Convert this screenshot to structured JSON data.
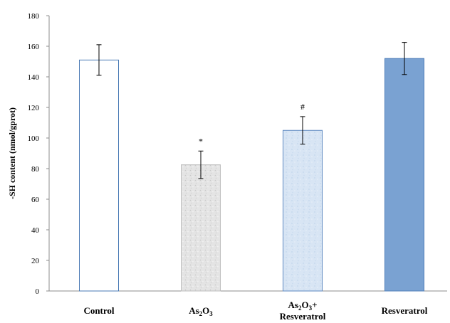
{
  "chart_data": {
    "type": "bar",
    "title": "",
    "xlabel": "",
    "ylabel": "-SH content (nmol/gprot)",
    "ylim": [
      0,
      180
    ],
    "yticks": [
      0,
      20,
      40,
      60,
      80,
      100,
      120,
      140,
      160,
      180
    ],
    "grid": false,
    "legend": "none",
    "categories": [
      {
        "label": "Control",
        "label_parts": [
          {
            "text": "Control"
          }
        ]
      },
      {
        "label": "As2O3",
        "label_parts": [
          {
            "text": "As"
          },
          {
            "text": "2",
            "sub": true
          },
          {
            "text": "O"
          },
          {
            "text": "3",
            "sub": true
          }
        ]
      },
      {
        "label": "As2O3+ Resveratrol",
        "label_parts": [
          {
            "text": "As"
          },
          {
            "text": "2",
            "sub": true
          },
          {
            "text": "O"
          },
          {
            "text": "3",
            "sub": true
          },
          {
            "text": "+"
          }
        ],
        "label_line2": "Resveratrol"
      },
      {
        "label": "Resveratrol",
        "label_parts": [
          {
            "text": "Resveratrol"
          }
        ]
      }
    ],
    "values": [
      151,
      82.5,
      105,
      152
    ],
    "errors": [
      10,
      9,
      9,
      10.5
    ],
    "annotations": [
      "",
      "*",
      "#",
      ""
    ],
    "styles": [
      {
        "fill": "#ffffff",
        "stroke": "#4a7ab5",
        "pattern": "none"
      },
      {
        "fill": "#e6e6e6",
        "stroke": "#bdbdbd",
        "pattern": "speckle-grey"
      },
      {
        "fill": "#d9e6f5",
        "stroke": "#5b87bf",
        "pattern": "speckle-blue"
      },
      {
        "fill": "#7aa2d2",
        "stroke": "#4f7db8",
        "pattern": "none"
      }
    ],
    "axis_color": "#8c8c8c"
  }
}
